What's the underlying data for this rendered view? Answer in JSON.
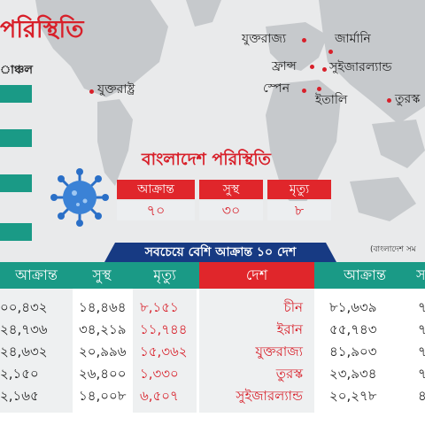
{
  "map": {
    "title": "পরিস্থিতি",
    "region_label": "াঞ্চল",
    "cities": [
      {
        "name": "যুক্তরাষ্ট্র"
      },
      {
        "name": "যুক্তরাজ্য"
      },
      {
        "name": "জার্মানি"
      },
      {
        "name": "ফ্রান্স"
      },
      {
        "name": "সুইজারল্যান্ড"
      },
      {
        "name": "স্পেন"
      },
      {
        "name": "ইতালি"
      },
      {
        "name": "তুরস্ক"
      }
    ],
    "source": "(বাংলাদেশ সম"
  },
  "bangladesh": {
    "title": "বাংলাদেশ পরিস্থিতি",
    "headers": [
      "আক্রান্ত",
      "সুস্থ",
      "মৃত্যু"
    ],
    "values": [
      "৭০",
      "৩০",
      "৮"
    ]
  },
  "table": {
    "banner": "সবচেয়ে বেশি আক্রান্ত ১০ দেশ",
    "headers": {
      "infected_left": "আক্রান্ত",
      "recovered": "সুস্থ",
      "deaths": "মৃত্যু",
      "country": "দেশ",
      "infected_right": "আক্রান্ত",
      "edge": "স"
    },
    "left_rows": [
      {
        "infected": "০০,৪৩২",
        "recovered": "১৪,৪৬৪",
        "deaths": "৮,১৫১"
      },
      {
        "infected": "২৪,৭৩৬",
        "recovered": "৩৪,২১৯",
        "deaths": "১১,৭৪৪"
      },
      {
        "infected": "২৪,৬৩২",
        "recovered": "২০,৯৯৬",
        "deaths": "১৫,৩৬২"
      },
      {
        "infected": "২,১৫০",
        "recovered": "২৬,৪০০",
        "deaths": "১,৩৩০"
      },
      {
        "infected": "২,১৬৫",
        "recovered": "১৪,০০৮",
        "deaths": "৬,৫০৭"
      }
    ],
    "right_rows": [
      {
        "country": "চীন",
        "infected": "৮১,৬৩৯",
        "edge": "৭"
      },
      {
        "country": "ইরান",
        "infected": "৫৫,৭৪৩",
        "edge": "৭"
      },
      {
        "country": "যুক্তরাজ্য",
        "infected": "৪১,৯০৩",
        "edge": "৭"
      },
      {
        "country": "তুরস্ক",
        "infected": "২৩,৯৩৪",
        "edge": "৭"
      },
      {
        "country": "সুইজারল্যান্ড",
        "infected": "২০,২৭৮",
        "edge": "৪"
      }
    ]
  },
  "colors": {
    "teal": "#1a9a86",
    "red": "#e0262b",
    "navy": "#173a83",
    "map_gray": "#e9eaeb",
    "virus_blue": "#2a6fc7"
  },
  "icons": [
    "coronavirus-icon"
  ]
}
